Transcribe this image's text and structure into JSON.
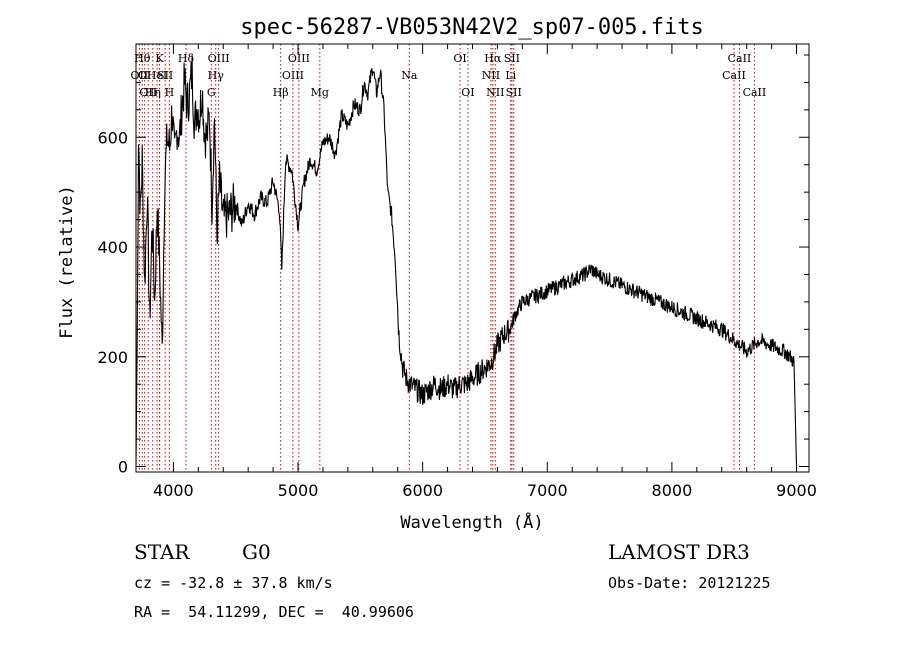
{
  "chart_data": {
    "type": "line",
    "title": "spec-56287-VB053N42V2_sp07-005.fits",
    "xlabel": "Wavelength (Å)",
    "ylabel": "Flux (relative)",
    "xlim": [
      3700,
      9100
    ],
    "ylim": [
      -10,
      770
    ],
    "xticks": [
      4000,
      5000,
      6000,
      7000,
      8000,
      9000
    ],
    "yticks": [
      0,
      200,
      400,
      600
    ],
    "grid": false,
    "line_color": "#000000",
    "marker_color": "#cc0000",
    "series": [
      {
        "x": [
          3700,
          3710,
          3720,
          3735,
          3750,
          3770,
          3790,
          3810,
          3830,
          3850,
          3870,
          3890,
          3910,
          3930,
          3950,
          3970,
          3990,
          4010,
          4030,
          4050,
          4070,
          4090,
          4110,
          4130,
          4150,
          4170,
          4190,
          4210,
          4230,
          4250,
          4270,
          4290,
          4310,
          4330,
          4350,
          4370,
          4400,
          4450,
          4500,
          4550,
          4600,
          4650,
          4700,
          4750,
          4800,
          4850,
          4870,
          4900,
          4950,
          5000,
          5050,
          5100,
          5150,
          5200,
          5250,
          5300,
          5350,
          5400,
          5450,
          5500,
          5530,
          5560,
          5600,
          5630,
          5660,
          5690,
          5720,
          5750,
          5780,
          5810,
          5840,
          5870,
          5900,
          5950,
          6000,
          6050,
          6100,
          6150,
          6200,
          6250,
          6300,
          6350,
          6400,
          6450,
          6500,
          6550,
          6600,
          6650,
          6700,
          6750,
          6800,
          6900,
          7000,
          7100,
          7200,
          7300,
          7350,
          7400,
          7500,
          7600,
          7700,
          7800,
          7900,
          8000,
          8100,
          8200,
          8300,
          8400,
          8500,
          8550,
          8600,
          8650,
          8700,
          8800,
          8900,
          8950,
          8980,
          9000
        ],
        "y": [
          0,
          230,
          610,
          460,
          560,
          330,
          500,
          260,
          450,
          300,
          480,
          360,
          210,
          520,
          600,
          580,
          650,
          560,
          620,
          600,
          660,
          700,
          660,
          680,
          720,
          620,
          660,
          640,
          690,
          610,
          600,
          640,
          480,
          640,
          420,
          520,
          450,
          460,
          480,
          440,
          480,
          460,
          490,
          480,
          520,
          470,
          360,
          560,
          540,
          440,
          520,
          560,
          540,
          590,
          600,
          570,
          640,
          620,
          660,
          650,
          700,
          680,
          730,
          680,
          720,
          650,
          500,
          460,
          380,
          240,
          180,
          160,
          150,
          140,
          130,
          140,
          150,
          140,
          150,
          140,
          150,
          150,
          160,
          170,
          180,
          190,
          220,
          240,
          250,
          280,
          300,
          310,
          320,
          330,
          340,
          350,
          360,
          350,
          340,
          330,
          320,
          310,
          300,
          290,
          280,
          270,
          260,
          250,
          230,
          220,
          210,
          220,
          230,
          220,
          210,
          200,
          190,
          0
        ]
      }
    ],
    "lines": [
      {
        "x": 3727,
        "label": "OII",
        "row": 2
      },
      {
        "x": 3750,
        "label": "Hθ",
        "row": 1
      },
      {
        "x": 3770,
        "label": "OI",
        "row": 2
      },
      {
        "x": 3798,
        "label": "OII",
        "row": 3
      },
      {
        "x": 3835,
        "label": "Hη",
        "row": 3
      },
      {
        "x": 3869,
        "label": "HeI",
        "row": 2
      },
      {
        "x": 3889,
        "label": "K",
        "row": 1
      },
      {
        "x": 3934,
        "label": "SII",
        "row": 2
      },
      {
        "x": 3968,
        "label": "H",
        "row": 3
      },
      {
        "x": 4101,
        "label": "Hδ",
        "row": 1
      },
      {
        "x": 4304,
        "label": "G",
        "row": 3
      },
      {
        "x": 4340,
        "label": "Hγ",
        "row": 2
      },
      {
        "x": 4363,
        "label": "OIII",
        "row": 1
      },
      {
        "x": 4861,
        "label": "Hβ",
        "row": 3
      },
      {
        "x": 4959,
        "label": "OIII",
        "row": 2
      },
      {
        "x": 5007,
        "label": "OIII",
        "row": 1
      },
      {
        "x": 5175,
        "label": "Mg",
        "row": 3
      },
      {
        "x": 5893,
        "label": "Na",
        "row": 2
      },
      {
        "x": 6300,
        "label": "OI",
        "row": 1
      },
      {
        "x": 6363,
        "label": "OI",
        "row": 3
      },
      {
        "x": 6548,
        "label": "NII",
        "row": 2
      },
      {
        "x": 6563,
        "label": "Hα",
        "row": 1
      },
      {
        "x": 6583,
        "label": "NII",
        "row": 3
      },
      {
        "x": 6707,
        "label": "Li",
        "row": 2
      },
      {
        "x": 6716,
        "label": "SII",
        "row": 1
      },
      {
        "x": 6731,
        "label": "SII",
        "row": 3
      },
      {
        "x": 8498,
        "label": "CaII",
        "row": 2
      },
      {
        "x": 8542,
        "label": "CaII",
        "row": 1
      },
      {
        "x": 8662,
        "label": "CaII",
        "row": 3
      }
    ]
  },
  "info": {
    "class": "STAR",
    "subclass": "G0",
    "survey": "LAMOST DR3",
    "cz": "cz = -32.8 ± 37.8 km/s",
    "obsdate": "Obs-Date: 20121225",
    "radec": "RA =  54.11299, DEC =  40.99606"
  }
}
